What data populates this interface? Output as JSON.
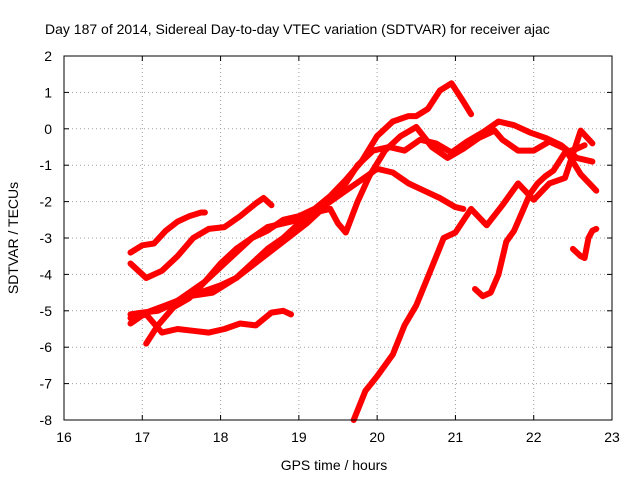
{
  "chart_data": {
    "type": "scatter",
    "title": "Day 187 of 2014, Sidereal Day-to-day VTEC variation (SDTVAR) for receiver ajac",
    "xlabel": "GPS time / hours",
    "ylabel": "SDTVAR / TECUs",
    "xlim": [
      16,
      23
    ],
    "ylim": [
      -8,
      2
    ],
    "xticks": [
      16,
      17,
      18,
      19,
      20,
      21,
      22,
      23
    ],
    "yticks": [
      -8,
      -7,
      -6,
      -5,
      -4,
      -3,
      -2,
      -1,
      0,
      1,
      2
    ],
    "grid": true,
    "marker": "+",
    "color": "#ff0000",
    "series": [
      {
        "name": "s1",
        "x": [
          16.85,
          17.0,
          17.15,
          17.3,
          17.45,
          17.6,
          17.75,
          17.8
        ],
        "y": [
          -3.4,
          -3.2,
          -3.15,
          -2.8,
          -2.55,
          -2.4,
          -2.3,
          -2.3
        ]
      },
      {
        "name": "s2",
        "x": [
          16.85,
          17.05,
          17.25,
          17.45,
          17.65,
          17.85,
          18.05,
          18.25,
          18.45,
          18.55,
          18.65
        ],
        "y": [
          -3.7,
          -4.1,
          -3.9,
          -3.5,
          -3.0,
          -2.75,
          -2.7,
          -2.4,
          -2.05,
          -1.9,
          -2.1
        ]
      },
      {
        "name": "s3",
        "x": [
          16.85,
          17.05,
          17.25,
          17.45,
          17.65,
          17.85,
          18.05,
          18.25,
          18.45,
          18.65,
          18.8,
          18.9
        ],
        "y": [
          -5.2,
          -5.1,
          -5.6,
          -5.5,
          -5.55,
          -5.6,
          -5.5,
          -5.35,
          -5.4,
          -5.05,
          -5.0,
          -5.1
        ]
      },
      {
        "name": "s4",
        "x": [
          16.85,
          17.0,
          17.2,
          17.4,
          17.6,
          17.8,
          18.0,
          18.2,
          18.4,
          18.6,
          18.8,
          19.0,
          19.2,
          19.4,
          19.6,
          19.8,
          20.0,
          20.2,
          20.4,
          20.5,
          20.65,
          20.8,
          20.95,
          21.1,
          21.2
        ],
        "y": [
          -5.1,
          -5.05,
          -5.0,
          -4.8,
          -4.5,
          -4.2,
          -3.7,
          -3.3,
          -3.0,
          -2.8,
          -2.5,
          -2.4,
          -2.2,
          -1.85,
          -1.4,
          -0.9,
          -0.2,
          0.2,
          0.35,
          0.35,
          0.55,
          1.05,
          1.25,
          0.75,
          0.4
        ]
      },
      {
        "name": "s5",
        "x": [
          17.05,
          17.2,
          17.4,
          17.6,
          17.8,
          18.0,
          18.2,
          18.4,
          18.6,
          18.8,
          19.0,
          19.2,
          19.4,
          19.6,
          19.8,
          20.0,
          20.2,
          20.4,
          20.6,
          20.8,
          21.0,
          21.1
        ],
        "y": [
          -5.9,
          -5.4,
          -4.9,
          -4.6,
          -4.45,
          -4.3,
          -4.1,
          -3.7,
          -3.3,
          -3.0,
          -2.6,
          -2.3,
          -2.0,
          -1.7,
          -1.4,
          -1.1,
          -1.2,
          -1.5,
          -1.7,
          -1.9,
          -2.15,
          -2.2
        ]
      },
      {
        "name": "s6",
        "x": [
          16.85,
          17.05,
          17.3,
          17.6,
          17.9,
          18.2,
          18.5,
          18.8,
          19.1,
          19.3,
          19.5,
          19.6,
          19.75,
          19.95,
          20.15,
          20.35,
          20.55,
          20.75,
          20.95,
          21.15,
          21.35,
          21.55,
          21.75,
          21.95,
          22.15,
          22.35,
          22.55,
          22.75
        ],
        "y": [
          -5.35,
          -5.05,
          -4.85,
          -4.6,
          -4.5,
          -4.1,
          -3.6,
          -3.1,
          -2.6,
          -2.2,
          -1.7,
          -1.5,
          -1.0,
          -0.6,
          -0.5,
          -0.6,
          -0.3,
          -0.4,
          -0.65,
          -0.35,
          -0.1,
          0.2,
          0.1,
          -0.1,
          -0.25,
          -0.45,
          -0.8,
          -0.9
        ]
      },
      {
        "name": "s7",
        "x": [
          17.4,
          17.6,
          17.8,
          18.0,
          18.2,
          18.4,
          18.6,
          18.8,
          19.0,
          19.2,
          19.4,
          19.5,
          19.6,
          19.75,
          19.9,
          20.1,
          20.3,
          20.5,
          20.7,
          20.9,
          21.1,
          21.3,
          21.5,
          21.6,
          21.8,
          22.0,
          22.2,
          22.4,
          22.6,
          22.8
        ],
        "y": [
          -4.9,
          -4.65,
          -4.2,
          -3.8,
          -3.4,
          -3.0,
          -2.7,
          -2.6,
          -2.5,
          -2.3,
          -2.2,
          -2.6,
          -2.85,
          -2.0,
          -1.3,
          -0.6,
          -0.2,
          0.05,
          -0.5,
          -0.8,
          -0.55,
          -0.25,
          -0.05,
          -0.3,
          -0.6,
          -0.6,
          -0.35,
          -0.55,
          -1.25,
          -1.7
        ]
      },
      {
        "name": "s8",
        "x": [
          19.7,
          19.85,
          20.0,
          20.2,
          20.35,
          20.5,
          20.7,
          20.85,
          21.0,
          21.2,
          21.4,
          21.6,
          21.8,
          22.0,
          22.2,
          22.4,
          22.6,
          22.75
        ],
        "y": [
          -8.0,
          -7.2,
          -6.8,
          -6.2,
          -5.4,
          -4.85,
          -3.8,
          -3.0,
          -2.85,
          -2.2,
          -2.65,
          -2.1,
          -1.5,
          -1.95,
          -1.5,
          -1.35,
          -0.05,
          -0.4
        ]
      },
      {
        "name": "s9",
        "x": [
          21.25,
          21.35,
          21.45,
          21.55,
          21.65,
          21.75,
          21.85,
          21.95,
          22.05,
          22.15,
          22.25,
          22.4,
          22.55,
          22.65
        ],
        "y": [
          -4.4,
          -4.6,
          -4.5,
          -4.0,
          -3.1,
          -2.8,
          -2.3,
          -1.8,
          -1.5,
          -1.3,
          -1.15,
          -0.65,
          -0.55,
          -0.45
        ]
      },
      {
        "name": "s10",
        "x": [
          22.5,
          22.6,
          22.65,
          22.7,
          22.75,
          22.8
        ],
        "y": [
          -3.3,
          -3.5,
          -3.55,
          -3.0,
          -2.8,
          -2.75
        ]
      }
    ]
  }
}
